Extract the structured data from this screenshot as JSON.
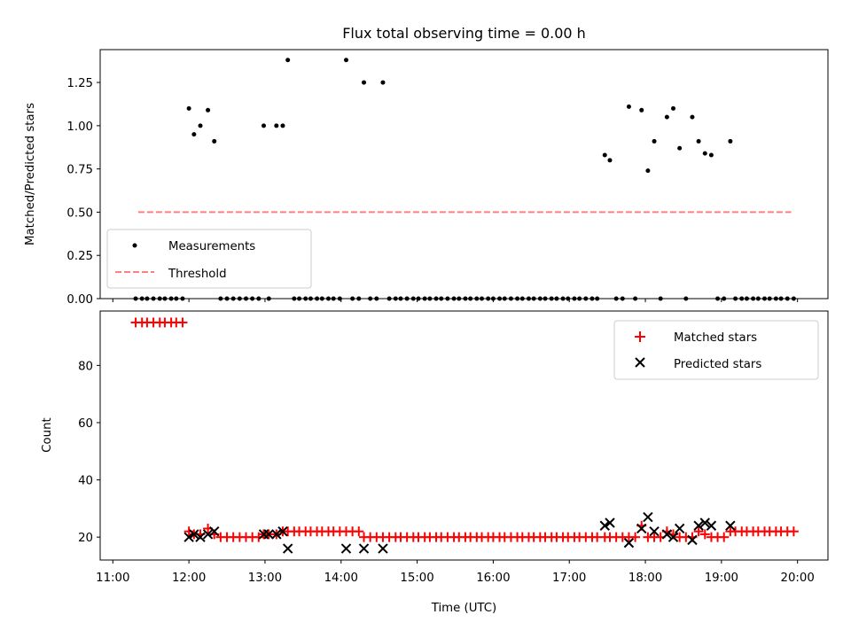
{
  "chart_data": [
    {
      "type": "scatter",
      "title": "Flux total observing time = 0.00 h",
      "xlabel": "",
      "ylabel": "Matched/Predicted stars",
      "xlim": [
        "11:00",
        "20:00"
      ],
      "ylim": [
        0,
        1.44
      ],
      "yticks": [
        "0.00",
        "0.25",
        "0.50",
        "0.75",
        "1.00",
        "1.25"
      ],
      "grid": false,
      "legend_position": "lower-left",
      "series": [
        {
          "name": "Measurements",
          "kind": "scatter",
          "marker": "dot",
          "color": "#000000",
          "points": [
            [
              "11:18",
              0
            ],
            [
              "11:23",
              0
            ],
            [
              "11:27",
              0
            ],
            [
              "11:32",
              0
            ],
            [
              "11:37",
              0
            ],
            [
              "11:41",
              0
            ],
            [
              "11:46",
              0
            ],
            [
              "11:50",
              0
            ],
            [
              "11:55",
              0
            ],
            [
              "12:00",
              1.1
            ],
            [
              "12:04",
              0.95
            ],
            [
              "12:09",
              1.0
            ],
            [
              "12:15",
              1.09
            ],
            [
              "12:20",
              0.91
            ],
            [
              "12:25",
              0
            ],
            [
              "12:30",
              0
            ],
            [
              "12:35",
              0
            ],
            [
              "12:40",
              0
            ],
            [
              "12:45",
              0
            ],
            [
              "12:50",
              0
            ],
            [
              "12:55",
              0
            ],
            [
              "12:59",
              1.0
            ],
            [
              "13:03",
              0
            ],
            [
              "13:09",
              1.0
            ],
            [
              "13:14",
              1.0
            ],
            [
              "13:18",
              1.38
            ],
            [
              "13:23",
              0
            ],
            [
              "13:27",
              0
            ],
            [
              "13:32",
              0
            ],
            [
              "13:36",
              0
            ],
            [
              "13:41",
              0
            ],
            [
              "13:45",
              0
            ],
            [
              "13:50",
              0
            ],
            [
              "13:54",
              0
            ],
            [
              "13:59",
              0
            ],
            [
              "14:04",
              1.38
            ],
            [
              "14:09",
              0
            ],
            [
              "14:14",
              0
            ],
            [
              "14:18",
              1.25
            ],
            [
              "14:23",
              0
            ],
            [
              "14:28",
              0
            ],
            [
              "14:33",
              1.25
            ],
            [
              "14:38",
              0
            ],
            [
              "14:43",
              0
            ],
            [
              "14:47",
              0
            ],
            [
              "14:52",
              0
            ],
            [
              "14:57",
              0
            ],
            [
              "15:01",
              0
            ],
            [
              "15:06",
              0
            ],
            [
              "15:10",
              0
            ],
            [
              "15:15",
              0
            ],
            [
              "15:19",
              0
            ],
            [
              "15:24",
              0
            ],
            [
              "15:29",
              0
            ],
            [
              "15:33",
              0
            ],
            [
              "15:38",
              0
            ],
            [
              "15:42",
              0
            ],
            [
              "15:47",
              0
            ],
            [
              "15:51",
              0
            ],
            [
              "15:56",
              0
            ],
            [
              "16:00",
              0
            ],
            [
              "16:05",
              0
            ],
            [
              "16:09",
              0
            ],
            [
              "16:14",
              0
            ],
            [
              "16:19",
              0
            ],
            [
              "16:23",
              0
            ],
            [
              "16:28",
              0
            ],
            [
              "16:32",
              0
            ],
            [
              "16:37",
              0
            ],
            [
              "16:41",
              0
            ],
            [
              "16:46",
              0
            ],
            [
              "16:50",
              0
            ],
            [
              "16:55",
              0
            ],
            [
              "16:59",
              0
            ],
            [
              "17:04",
              0
            ],
            [
              "17:08",
              0
            ],
            [
              "17:13",
              0
            ],
            [
              "17:18",
              0
            ],
            [
              "17:22",
              0
            ],
            [
              "17:28",
              0.83
            ],
            [
              "17:32",
              0.8
            ],
            [
              "17:37",
              0
            ],
            [
              "17:42",
              0
            ],
            [
              "17:47",
              1.11
            ],
            [
              "17:52",
              0
            ],
            [
              "17:57",
              1.09
            ],
            [
              "18:02",
              0.74
            ],
            [
              "18:07",
              0.91
            ],
            [
              "18:12",
              0
            ],
            [
              "18:17",
              1.05
            ],
            [
              "18:22",
              1.1
            ],
            [
              "18:27",
              0.87
            ],
            [
              "18:32",
              0
            ],
            [
              "18:37",
              1.05
            ],
            [
              "18:42",
              0.91
            ],
            [
              "18:47",
              0.84
            ],
            [
              "18:52",
              0.83
            ],
            [
              "18:57",
              0
            ],
            [
              "19:02",
              0
            ],
            [
              "19:07",
              0.91
            ],
            [
              "19:11",
              0
            ],
            [
              "19:16",
              0
            ],
            [
              "19:20",
              0
            ],
            [
              "19:25",
              0
            ],
            [
              "19:29",
              0
            ],
            [
              "19:34",
              0
            ],
            [
              "19:38",
              0
            ],
            [
              "19:43",
              0
            ],
            [
              "19:47",
              0
            ],
            [
              "19:52",
              0
            ],
            [
              "19:57",
              0
            ]
          ]
        },
        {
          "name": "Threshold",
          "kind": "line",
          "style": "dashed",
          "color": "#ff7f7f",
          "points": [
            [
              "11:20",
              0.5
            ],
            [
              "19:55",
              0.5
            ]
          ]
        }
      ]
    },
    {
      "type": "scatter",
      "title": "",
      "xlabel": "Time (UTC)",
      "ylabel": "Count",
      "xlim": [
        "11:00",
        "20:00"
      ],
      "ylim": [
        12,
        99
      ],
      "xticks": [
        "11:00",
        "12:00",
        "13:00",
        "14:00",
        "15:00",
        "16:00",
        "17:00",
        "18:00",
        "19:00",
        "20:00"
      ],
      "yticks": [
        "20",
        "40",
        "60",
        "80"
      ],
      "grid": false,
      "legend_position": "top-right",
      "series": [
        {
          "name": "Matched stars",
          "kind": "scatter",
          "marker": "plus",
          "color": "#ff0000",
          "points": [
            [
              "11:18",
              95
            ],
            [
              "11:23",
              95
            ],
            [
              "11:27",
              95
            ],
            [
              "11:32",
              95
            ],
            [
              "11:37",
              95
            ],
            [
              "11:41",
              95
            ],
            [
              "11:46",
              95
            ],
            [
              "11:50",
              95
            ],
            [
              "11:55",
              95
            ],
            [
              "12:00",
              22
            ],
            [
              "12:04",
              21
            ],
            [
              "12:09",
              21
            ],
            [
              "12:15",
              23
            ],
            [
              "12:20",
              21
            ],
            [
              "12:25",
              20
            ],
            [
              "12:30",
              20
            ],
            [
              "12:35",
              20
            ],
            [
              "12:40",
              20
            ],
            [
              "12:45",
              20
            ],
            [
              "12:50",
              20
            ],
            [
              "12:55",
              20
            ],
            [
              "12:59",
              21
            ],
            [
              "13:03",
              21
            ],
            [
              "13:09",
              21
            ],
            [
              "13:14",
              22
            ],
            [
              "13:18",
              22
            ],
            [
              "13:23",
              22
            ],
            [
              "13:27",
              22
            ],
            [
              "13:32",
              22
            ],
            [
              "13:36",
              22
            ],
            [
              "13:41",
              22
            ],
            [
              "13:45",
              22
            ],
            [
              "13:50",
              22
            ],
            [
              "13:54",
              22
            ],
            [
              "13:59",
              22
            ],
            [
              "14:04",
              22
            ],
            [
              "14:09",
              22
            ],
            [
              "14:14",
              22
            ],
            [
              "14:18",
              20
            ],
            [
              "14:23",
              20
            ],
            [
              "14:28",
              20
            ],
            [
              "14:33",
              20
            ],
            [
              "14:38",
              20
            ],
            [
              "14:43",
              20
            ],
            [
              "14:47",
              20
            ],
            [
              "14:52",
              20
            ],
            [
              "14:57",
              20
            ],
            [
              "15:01",
              20
            ],
            [
              "15:06",
              20
            ],
            [
              "15:10",
              20
            ],
            [
              "15:15",
              20
            ],
            [
              "15:19",
              20
            ],
            [
              "15:24",
              20
            ],
            [
              "15:29",
              20
            ],
            [
              "15:33",
              20
            ],
            [
              "15:38",
              20
            ],
            [
              "15:42",
              20
            ],
            [
              "15:47",
              20
            ],
            [
              "15:51",
              20
            ],
            [
              "15:56",
              20
            ],
            [
              "16:00",
              20
            ],
            [
              "16:05",
              20
            ],
            [
              "16:09",
              20
            ],
            [
              "16:14",
              20
            ],
            [
              "16:19",
              20
            ],
            [
              "16:23",
              20
            ],
            [
              "16:28",
              20
            ],
            [
              "16:32",
              20
            ],
            [
              "16:37",
              20
            ],
            [
              "16:41",
              20
            ],
            [
              "16:46",
              20
            ],
            [
              "16:50",
              20
            ],
            [
              "16:55",
              20
            ],
            [
              "16:59",
              20
            ],
            [
              "17:04",
              20
            ],
            [
              "17:08",
              20
            ],
            [
              "17:13",
              20
            ],
            [
              "17:18",
              20
            ],
            [
              "17:22",
              20
            ],
            [
              "17:28",
              20
            ],
            [
              "17:32",
              20
            ],
            [
              "17:37",
              20
            ],
            [
              "17:42",
              20
            ],
            [
              "17:47",
              20
            ],
            [
              "17:52",
              20
            ],
            [
              "17:57",
              24
            ],
            [
              "18:02",
              20
            ],
            [
              "18:07",
              20
            ],
            [
              "18:12",
              20
            ],
            [
              "18:17",
              22
            ],
            [
              "18:22",
              21
            ],
            [
              "18:27",
              20
            ],
            [
              "18:32",
              20
            ],
            [
              "18:37",
              20
            ],
            [
              "18:42",
              22
            ],
            [
              "18:47",
              21
            ],
            [
              "18:52",
              20
            ],
            [
              "18:57",
              20
            ],
            [
              "19:02",
              20
            ],
            [
              "19:07",
              22
            ],
            [
              "19:11",
              22
            ],
            [
              "19:16",
              22
            ],
            [
              "19:20",
              22
            ],
            [
              "19:25",
              22
            ],
            [
              "19:29",
              22
            ],
            [
              "19:34",
              22
            ],
            [
              "19:38",
              22
            ],
            [
              "19:43",
              22
            ],
            [
              "19:47",
              22
            ],
            [
              "19:52",
              22
            ],
            [
              "19:57",
              22
            ]
          ]
        },
        {
          "name": "Predicted stars",
          "kind": "scatter",
          "marker": "x",
          "color": "#000000",
          "points": [
            [
              "12:00",
              20
            ],
            [
              "12:04",
              21
            ],
            [
              "12:09",
              20
            ],
            [
              "12:15",
              21
            ],
            [
              "12:20",
              22
            ],
            [
              "12:59",
              21
            ],
            [
              "13:03",
              21
            ],
            [
              "13:09",
              21
            ],
            [
              "13:14",
              22
            ],
            [
              "13:18",
              16
            ],
            [
              "14:04",
              16
            ],
            [
              "14:18",
              16
            ],
            [
              "14:33",
              16
            ],
            [
              "17:28",
              24
            ],
            [
              "17:32",
              25
            ],
            [
              "17:47",
              18
            ],
            [
              "17:57",
              23
            ],
            [
              "18:02",
              27
            ],
            [
              "18:07",
              22
            ],
            [
              "18:17",
              21
            ],
            [
              "18:22",
              20
            ],
            [
              "18:27",
              23
            ],
            [
              "18:37",
              19
            ],
            [
              "18:42",
              24
            ],
            [
              "18:47",
              25
            ],
            [
              "18:52",
              24
            ],
            [
              "19:07",
              24
            ]
          ]
        }
      ]
    }
  ]
}
